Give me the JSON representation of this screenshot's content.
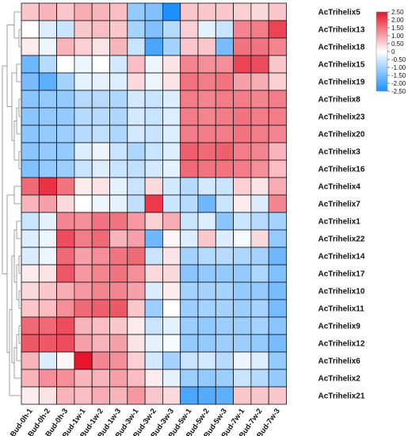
{
  "chart_data": {
    "type": "heatmap",
    "title": "",
    "xlabel": "",
    "ylabel": "",
    "columns": [
      "Bud-0h-1",
      "Bud-0h-2",
      "Bud-0h-3",
      "Bud-1w-1",
      "Bud-1w-2",
      "Bud-1w-3",
      "Bud-3w-1",
      "Bud-3w-2",
      "Bud-3w-3",
      "Bud-5w-1",
      "Bud-5w-2",
      "Bud-5w-3",
      "Bud-7w-1",
      "Bud-7w-2",
      "Bud-7w-3"
    ],
    "rows": [
      "AcTrihelix5",
      "AcTrihelix13",
      "AcTrihelix18",
      "AcTrihelix15",
      "AcTrihelix19",
      "AcTrihelix8",
      "AcTrihelix23",
      "AcTrihelix20",
      "AcTrihelix3",
      "AcTrihelix16",
      "AcTrihelix4",
      "AcTrihelix7",
      "AcTrihelix1",
      "AcTrihelix22",
      "AcTrihelix14",
      "AcTrihelix17",
      "AcTrihelix10",
      "AcTrihelix11",
      "AcTrihelix9",
      "AcTrihelix12",
      "AcTrihelix6",
      "AcTrihelix2",
      "AcTrihelix21"
    ],
    "values": [
      [
        0.6,
        0.8,
        0.6,
        0.9,
        0.8,
        0.7,
        -1.2,
        -1.4,
        -2.5,
        0.6,
        0.6,
        0.6,
        0.5,
        0.4,
        0.6
      ],
      [
        0.0,
        -0.4,
        -0.6,
        0.6,
        0.7,
        0.6,
        -1.0,
        -1.4,
        -0.8,
        0.5,
        -0.3,
        -0.6,
        1.3,
        1.4,
        2.0
      ],
      [
        0.2,
        -0.2,
        0.8,
        0.5,
        0.3,
        0.8,
        -0.6,
        -2.0,
        -1.0,
        0.6,
        0.6,
        -1.5,
        1.5,
        1.5,
        1.3
      ],
      [
        -1.6,
        -0.8,
        0.0,
        -0.2,
        0.0,
        -0.5,
        0.7,
        -0.2,
        0.3,
        1.3,
        1.2,
        1.2,
        2.0,
        1.9,
        0.6
      ],
      [
        -1.5,
        -1.8,
        -1.0,
        -0.3,
        -0.3,
        -0.4,
        0.4,
        -0.2,
        0.3,
        1.5,
        1.4,
        1.5,
        1.0,
        0.9,
        0.5
      ],
      [
        -1.3,
        -1.2,
        -1.2,
        -0.8,
        -0.8,
        -0.9,
        -0.5,
        -0.6,
        -0.4,
        1.4,
        1.3,
        1.4,
        1.4,
        1.3,
        1.4
      ],
      [
        -1.3,
        -1.2,
        -1.2,
        -0.8,
        -0.8,
        -0.9,
        -0.5,
        -0.6,
        -0.4,
        1.4,
        1.3,
        1.4,
        1.5,
        1.4,
        1.4
      ],
      [
        -1.3,
        -1.2,
        -1.1,
        -0.8,
        -0.7,
        -0.9,
        -0.5,
        -0.6,
        -0.4,
        1.4,
        1.4,
        1.4,
        1.5,
        1.4,
        1.3
      ],
      [
        -1.3,
        -1.2,
        -1.2,
        -0.4,
        -0.2,
        -0.6,
        -0.9,
        -0.6,
        -0.4,
        1.7,
        1.6,
        1.7,
        1.4,
        1.3,
        0.8
      ],
      [
        -1.4,
        -1.2,
        -1.1,
        -0.6,
        -0.4,
        -0.6,
        -0.7,
        -0.5,
        -0.3,
        1.6,
        1.5,
        1.5,
        1.4,
        1.2,
        0.7
      ],
      [
        1.6,
        2.2,
        1.5,
        0.2,
        0.3,
        -0.3,
        -0.6,
        0.4,
        -0.5,
        -0.8,
        -0.5,
        -0.6,
        0.5,
        0.3,
        0.9
      ],
      [
        0.8,
        1.0,
        0.4,
        0.0,
        -0.2,
        -0.3,
        -0.7,
        2.1,
        -0.6,
        -0.8,
        -1.6,
        -0.6,
        0.2,
        -0.4,
        1.3
      ],
      [
        -0.6,
        -0.3,
        1.3,
        1.2,
        1.5,
        1.5,
        1.1,
        0.5,
        0.9,
        -0.6,
        -0.4,
        -1.3,
        -0.6,
        -0.8,
        -1.0
      ],
      [
        -0.4,
        -0.2,
        1.9,
        1.4,
        1.6,
        0.8,
        1.0,
        -1.6,
        0.1,
        -0.4,
        0.6,
        -0.4,
        -0.1,
        0.4,
        -1.2
      ],
      [
        -0.4,
        -0.2,
        1.6,
        1.0,
        1.2,
        1.5,
        1.6,
        -0.6,
        0.3,
        -1.0,
        -0.8,
        -0.8,
        -0.9,
        -1.0,
        -1.6
      ],
      [
        0.2,
        0.3,
        1.8,
        1.1,
        1.3,
        1.5,
        1.2,
        0.4,
        0.4,
        -1.3,
        -1.2,
        -1.2,
        -1.2,
        -0.9,
        -1.4
      ],
      [
        0.4,
        0.6,
        0.9,
        1.1,
        1.3,
        1.3,
        1.0,
        -0.4,
        0.2,
        -1.0,
        -1.0,
        -1.0,
        -1.2,
        -1.2,
        -1.5
      ],
      [
        0.6,
        0.7,
        1.2,
        1.6,
        1.7,
        1.8,
        0.6,
        -1.1,
        0.0,
        -1.1,
        -1.0,
        -1.0,
        -1.1,
        -1.0,
        -1.5
      ],
      [
        1.6,
        1.6,
        1.9,
        0.8,
        0.7,
        0.6,
        0.2,
        -0.6,
        -0.3,
        -1.1,
        -1.2,
        -1.1,
        -1.1,
        -1.0,
        -1.3
      ],
      [
        1.8,
        1.8,
        1.9,
        1.0,
        0.8,
        1.0,
        0.3,
        -0.3,
        -0.1,
        -1.2,
        -1.2,
        -1.1,
        -1.1,
        -1.2,
        -1.5
      ],
      [
        0.8,
        -0.4,
        0.1,
        2.5,
        1.3,
        1.2,
        0.5,
        -0.5,
        -1.0,
        -0.6,
        -0.5,
        -0.8,
        -0.2,
        -0.4,
        -1.2
      ],
      [
        0.8,
        1.2,
        1.2,
        0.8,
        0.8,
        1.0,
        0.7,
        0.2,
        -0.3,
        -1.1,
        -1.2,
        -1.1,
        -0.6,
        -0.8,
        -1.2
      ],
      [
        0.2,
        0.3,
        0.8,
        0.7,
        0.9,
        0.8,
        1.1,
        0.6,
        0.4,
        -2.0,
        -1.9,
        -1.8,
        0.6,
        0.6,
        0.6
      ]
    ],
    "color_scale": {
      "min": -2.5,
      "max": 2.5,
      "low_color": "#1e90ff",
      "mid_color": "#ffffff",
      "high_color": "#e8152a",
      "ticks": [
        "2.50",
        "2.00",
        "1.50",
        "1.00",
        "0.50",
        "0",
        "-0.50",
        "-1.00",
        "-1.50",
        "-2.00",
        "-2.50"
      ]
    },
    "row_dendrogram": true,
    "grid": true,
    "legend_placement": "top-right"
  }
}
